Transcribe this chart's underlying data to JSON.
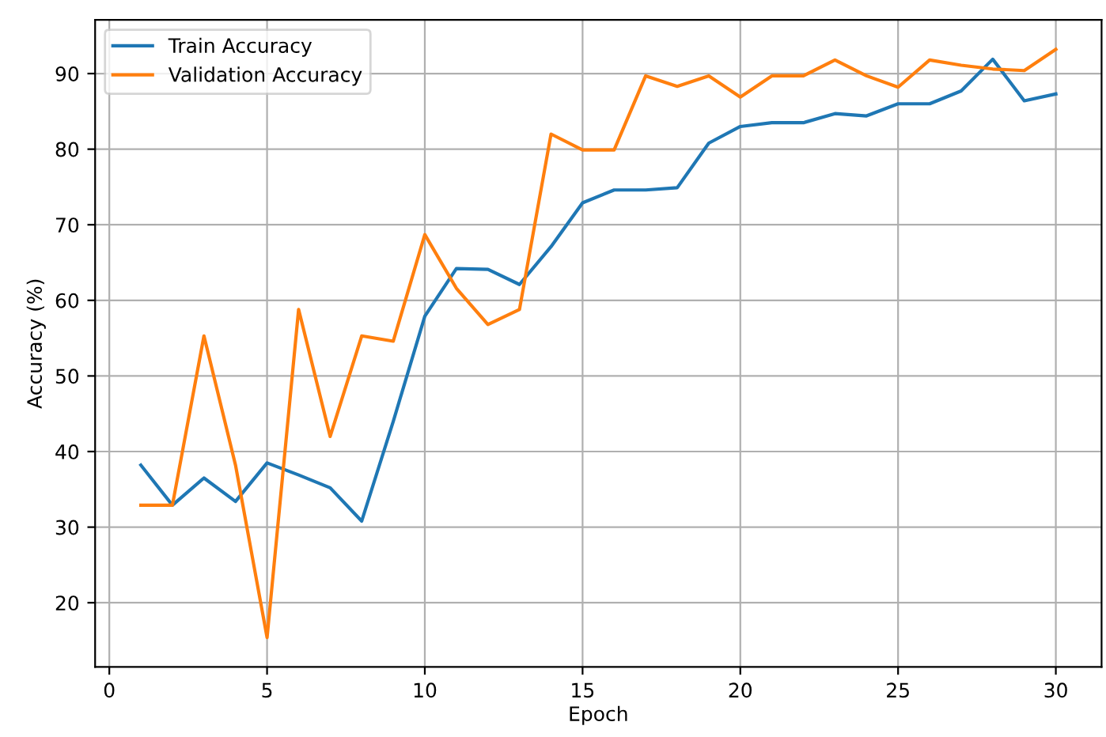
{
  "chart_data": {
    "type": "line",
    "xlabel": "Epoch",
    "ylabel": "Accuracy (%)",
    "x": [
      1,
      2,
      3,
      4,
      5,
      6,
      7,
      8,
      9,
      10,
      11,
      12,
      13,
      14,
      15,
      16,
      17,
      18,
      19,
      20,
      21,
      22,
      23,
      24,
      25,
      26,
      27,
      28,
      29,
      30
    ],
    "series": [
      {
        "name": "Train Accuracy",
        "color": "#1f77b4",
        "values": [
          38.2,
          32.9,
          36.5,
          33.4,
          38.5,
          36.9,
          35.2,
          30.8,
          44.0,
          57.9,
          64.2,
          64.1,
          62.1,
          67.1,
          72.9,
          74.6,
          74.6,
          74.9,
          80.8,
          83.0,
          83.5,
          83.5,
          84.7,
          84.4,
          86.0,
          86.0,
          87.7,
          91.9,
          86.4,
          87.3
        ]
      },
      {
        "name": "Validation Accuracy",
        "color": "#ff7f0e",
        "values": [
          32.9,
          32.9,
          55.3,
          38.2,
          15.4,
          58.8,
          42.0,
          55.3,
          54.6,
          68.7,
          61.6,
          56.8,
          58.8,
          82.0,
          79.9,
          79.9,
          89.7,
          88.3,
          89.7,
          86.9,
          89.7,
          89.7,
          91.8,
          89.7,
          88.2,
          91.8,
          91.1,
          90.6,
          90.4,
          93.2
        ]
      }
    ],
    "xlim": [
      -0.45,
      31.45
    ],
    "ylim": [
      11.5,
      97.1
    ],
    "xticks": [
      0,
      5,
      10,
      15,
      20,
      25,
      30
    ],
    "yticks": [
      20,
      30,
      40,
      50,
      60,
      70,
      80,
      90
    ],
    "grid": true,
    "legend": "top left",
    "marker": "none",
    "line_style": "solid"
  }
}
